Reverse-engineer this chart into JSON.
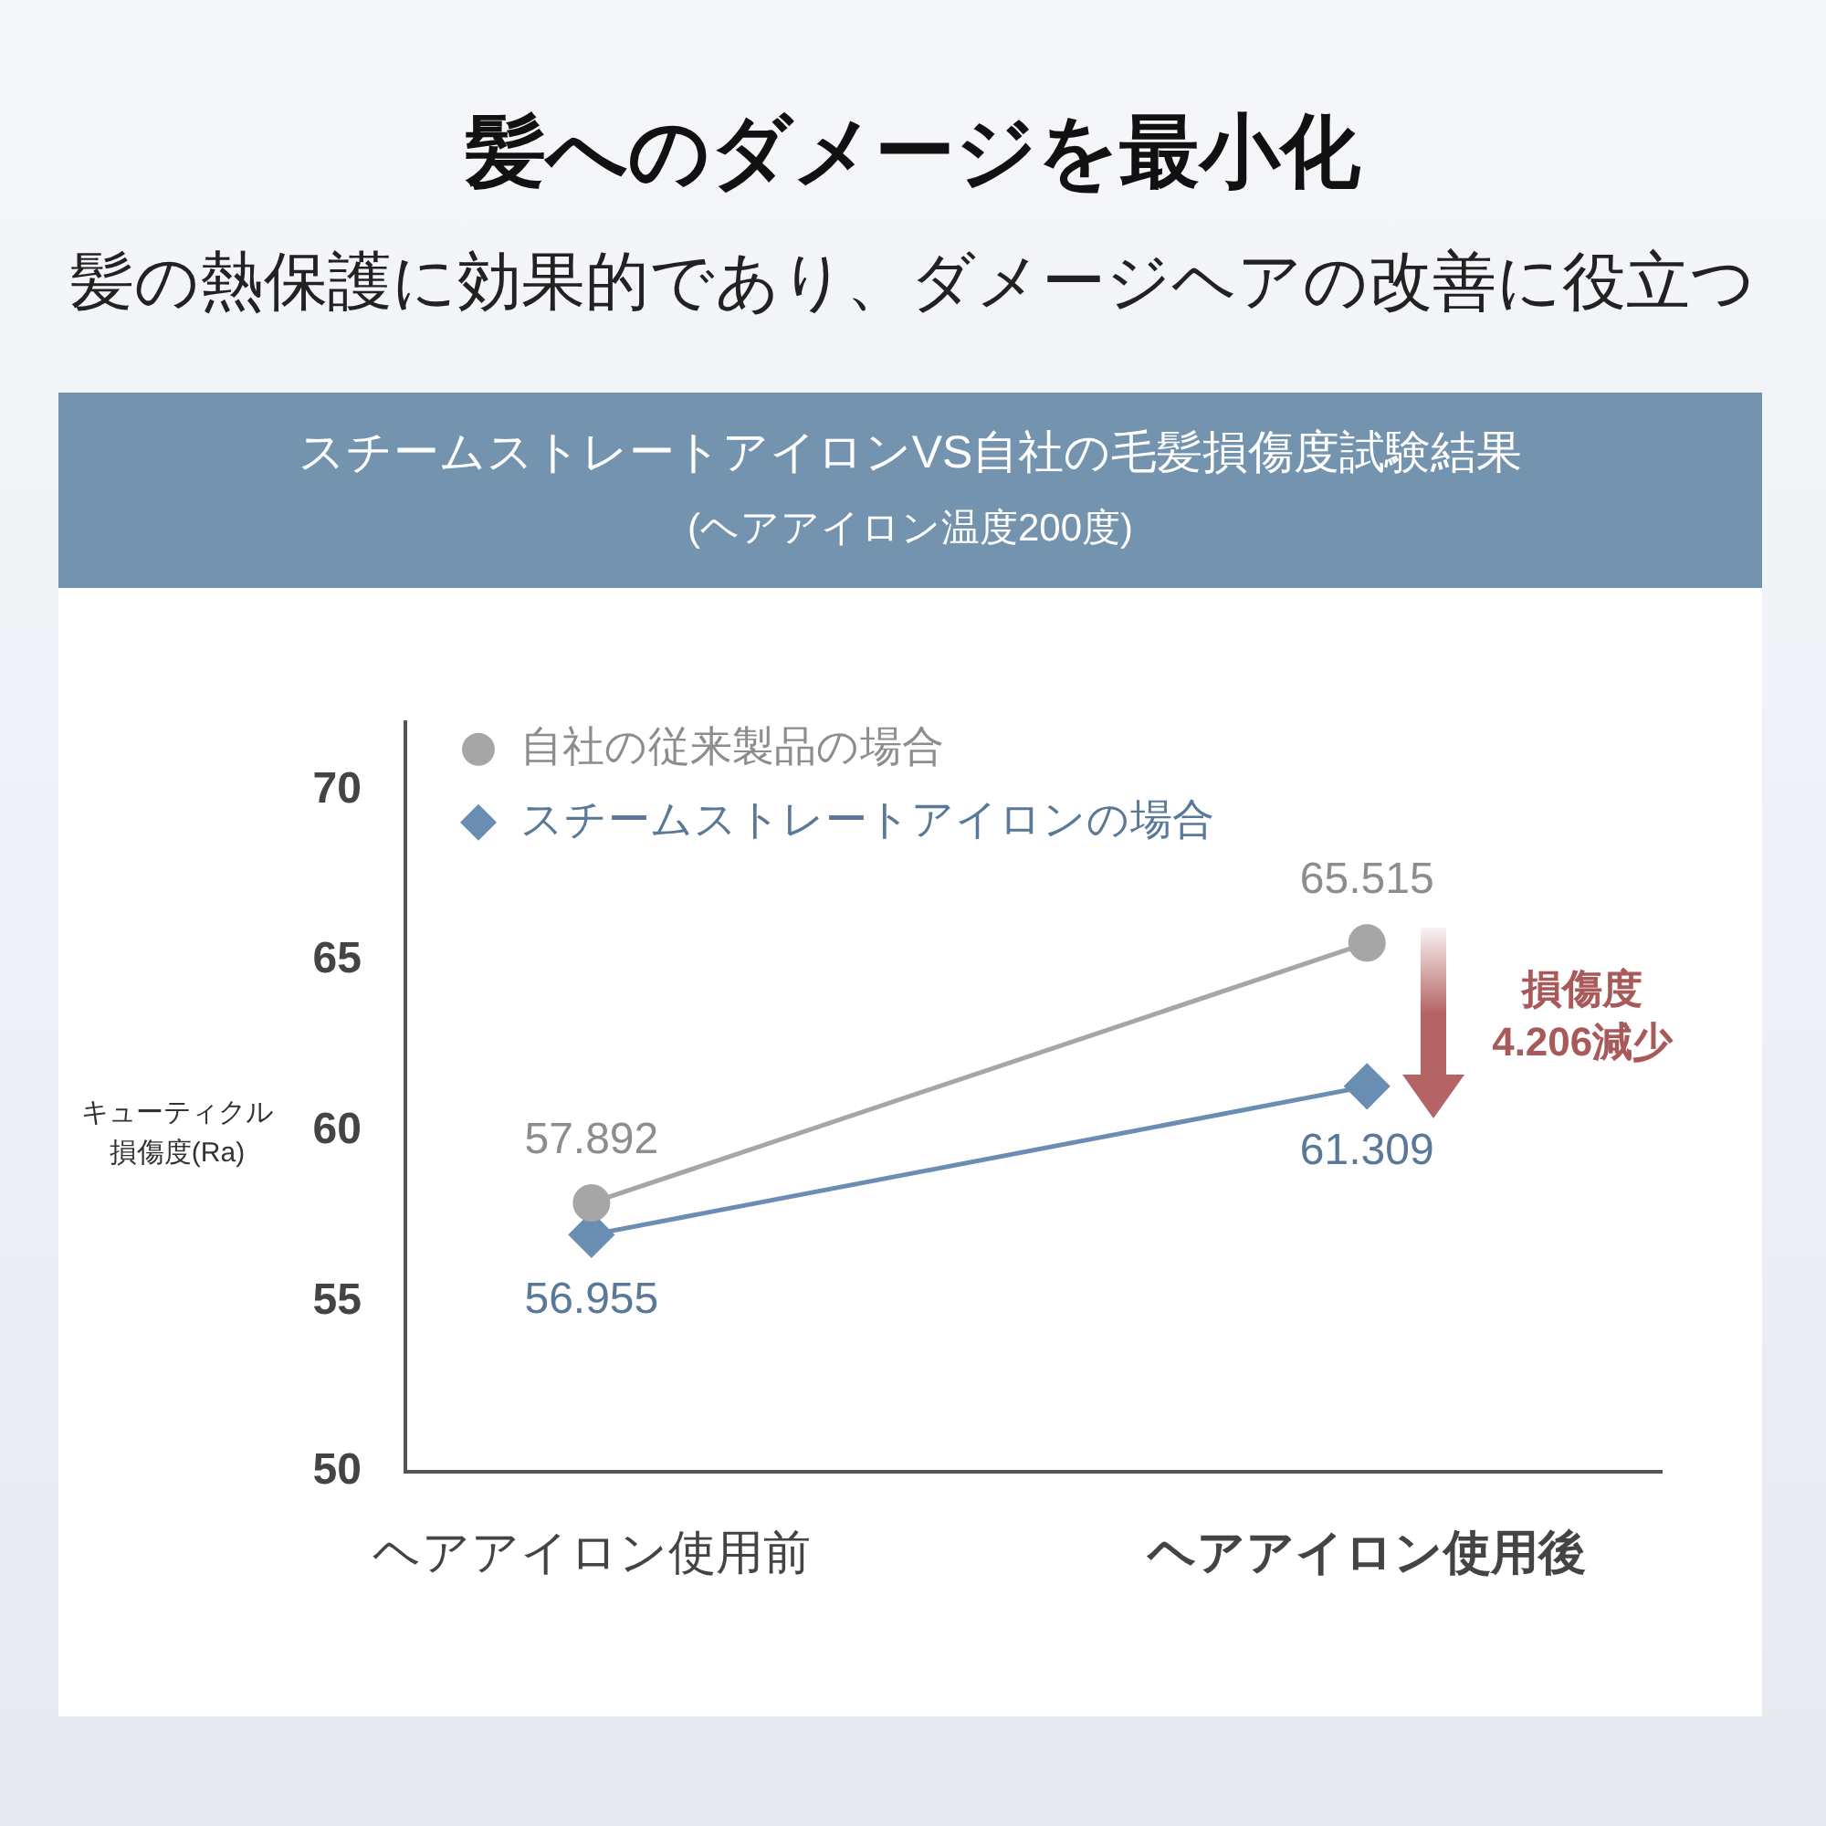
{
  "chart_data": {
    "type": "line",
    "title": "髪へのダメージを最小化",
    "subtitle": "髪の熱保護に効果的であり、ダメージヘアの改善に役立つ",
    "ylabel": "キューティクル損傷度(Ra)",
    "categories": [
      "ヘアアイロン使用前",
      "ヘアアイロン使用後"
    ],
    "series": [
      {
        "name": "自社の従来製品の場合",
        "color": "#a6a6a6",
        "marker": "circle",
        "values": [
          57.892,
          65.515
        ]
      },
      {
        "name": "スチームストレートアイロンの場合",
        "color": "#6a8db2",
        "marker": "diamond",
        "values": [
          56.955,
          61.309
        ]
      }
    ],
    "ylim": [
      50,
      72
    ],
    "yticks": [
      50,
      55,
      60,
      65,
      70
    ],
    "data_labels": true,
    "legend": "top left",
    "annotations": [
      "スチームストレートアイロンVS自社の毛髪損傷度試験結果",
      "(ヘアアイロン温度200度)",
      "損傷度4.206減少"
    ]
  }
}
